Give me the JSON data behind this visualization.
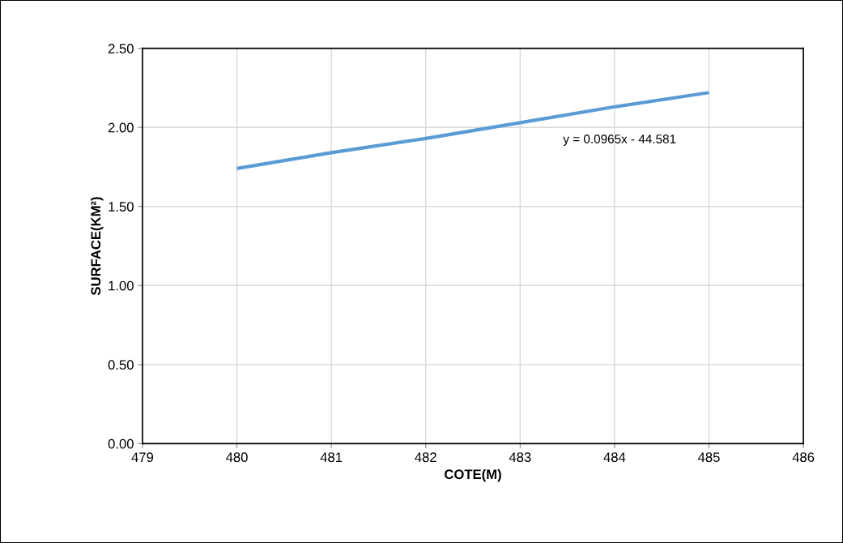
{
  "chart_data": {
    "type": "line",
    "xlabel": "COTE(M)",
    "ylabel": "SURFACE(KM²)",
    "x": [
      480,
      481,
      482,
      483,
      484,
      485
    ],
    "series": [
      {
        "color": "#5b9bd5",
        "values": [
          1.74,
          1.84,
          1.93,
          2.03,
          2.13,
          2.22
        ]
      }
    ],
    "xlim": [
      479,
      486
    ],
    "xticks": [
      479,
      480,
      481,
      482,
      483,
      484,
      485,
      486
    ],
    "ylim": [
      0,
      2.5
    ],
    "yticks": [
      {
        "value": 0,
        "label": "0.00"
      },
      {
        "value": 0.5,
        "label": "0.50"
      },
      {
        "value": 1,
        "label": "1.00"
      },
      {
        "value": 1.5,
        "label": "1.50"
      },
      {
        "value": 2,
        "label": "2.00"
      },
      {
        "value": 2.5,
        "label": "2.50"
      }
    ],
    "annotations": [
      "y = 0.0965x - 44.581"
    ],
    "grid": true,
    "legend": false,
    "marker": "none",
    "line_style": "solid"
  }
}
